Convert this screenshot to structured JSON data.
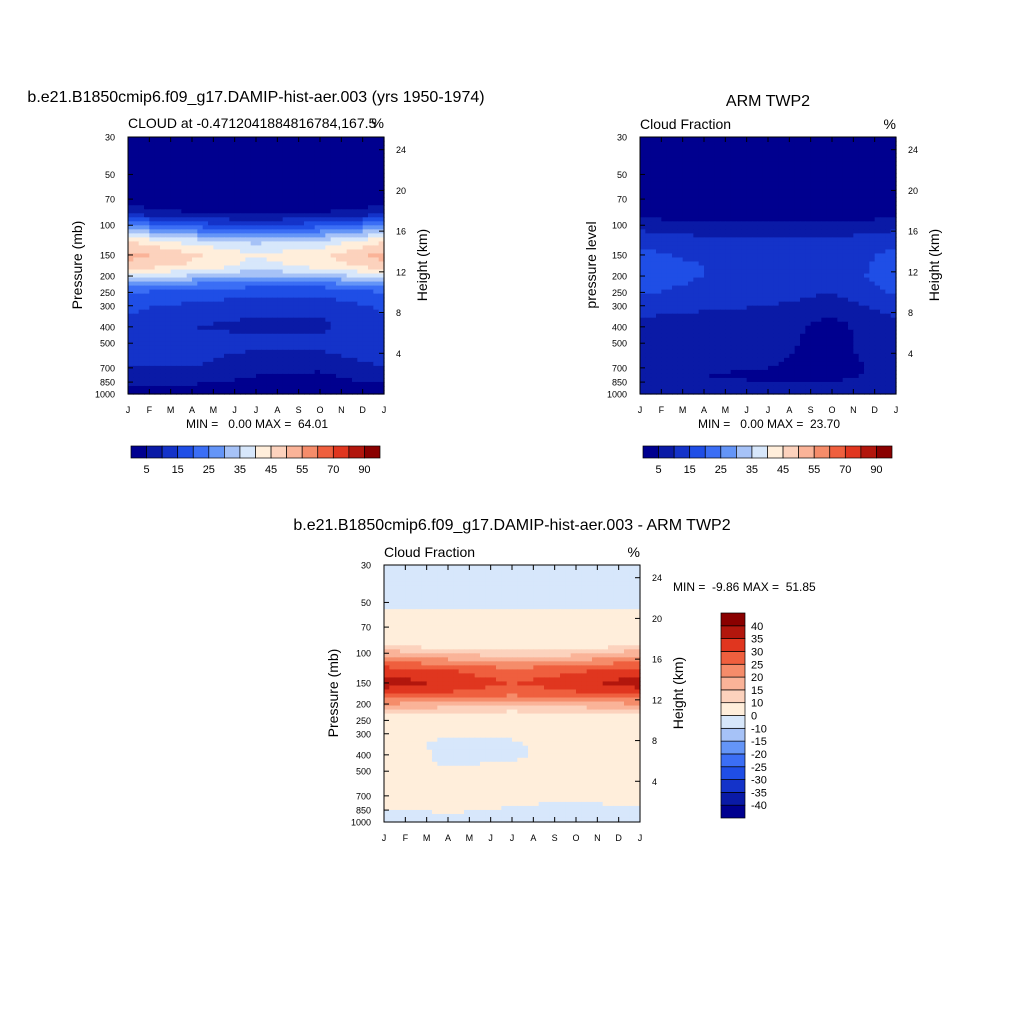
{
  "figure": {
    "background": "#ffffff"
  },
  "chart_data": [
    {
      "id": "model",
      "type": "heatmap",
      "title": "b.e21.B1850cmip6.f09_g17.DAMIP-hist-aer.003 (yrs 1950-1974)",
      "subtitle_left": "CLOUD at -0.4712041884816784,167.5",
      "subtitle_right": "%",
      "ylabel": "Pressure (mb)",
      "ylabel_right": "Height (km)",
      "x_ticks": [
        "J",
        "F",
        "M",
        "A",
        "M",
        "J",
        "J",
        "A",
        "S",
        "O",
        "N",
        "D",
        "J"
      ],
      "y_ticks": [
        30,
        50,
        70,
        100,
        150,
        200,
        250,
        300,
        400,
        500,
        700,
        850,
        1000
      ],
      "y_range": [
        30,
        1000
      ],
      "height_ticks": [
        4,
        8,
        12,
        16,
        20,
        24
      ],
      "stats_text": "MIN =   0.00 MAX =  64.01",
      "levels": [
        5,
        10,
        15,
        20,
        25,
        30,
        35,
        40,
        45,
        50,
        55,
        60,
        70,
        80,
        90
      ],
      "colors": [
        "#00008f",
        "#0a1aa6",
        "#1433c9",
        "#1f4ee6",
        "#3b6ef5",
        "#6495f7",
        "#a6c2f7",
        "#d7e7fb",
        "#ffeedb",
        "#fcd2bd",
        "#fab398",
        "#f58c6a",
        "#ef5f3e",
        "#e0361f",
        "#b2160d",
        "#8a0000"
      ],
      "colorbar_labels": [
        "5",
        "15",
        "25",
        "35",
        "45",
        "55",
        "70",
        "90"
      ],
      "profiles": {
        "pressure": [
          30,
          50,
          70,
          85,
          100,
          125,
          150,
          175,
          200,
          225,
          250,
          275,
          300,
          350,
          400,
          450,
          500,
          600,
          700,
          775,
          850,
          925,
          1000
        ],
        "months": [
          "Jan",
          "Apr",
          "Jul",
          "Oct",
          "Jan"
        ],
        "values": [
          [
            2,
            2,
            2,
            8,
            25,
            45,
            52,
            48,
            38,
            28,
            20,
            18,
            16,
            15,
            14,
            14,
            13,
            12,
            10,
            8,
            6,
            3,
            2
          ],
          [
            2,
            2,
            2,
            5,
            18,
            38,
            46,
            44,
            34,
            24,
            18,
            16,
            14,
            11,
            10,
            11,
            12,
            11,
            10,
            8,
            6,
            3,
            2
          ],
          [
            2,
            2,
            2,
            4,
            14,
            34,
            40,
            38,
            30,
            22,
            16,
            14,
            12,
            10,
            9,
            10,
            11,
            9,
            7,
            5,
            4,
            2,
            1
          ],
          [
            2,
            2,
            2,
            5,
            18,
            36,
            44,
            42,
            32,
            22,
            16,
            14,
            12,
            10,
            9,
            10,
            11,
            9,
            6,
            4,
            3,
            2,
            1
          ],
          [
            2,
            2,
            2,
            8,
            25,
            45,
            52,
            48,
            38,
            28,
            20,
            18,
            16,
            15,
            14,
            14,
            13,
            12,
            10,
            8,
            6,
            3,
            2
          ]
        ]
      }
    },
    {
      "id": "obs",
      "type": "heatmap",
      "title": "ARM TWP2",
      "subtitle_left": "Cloud Fraction",
      "subtitle_right": "%",
      "ylabel": "pressure level",
      "ylabel_right": "Height (km)",
      "x_ticks": [
        "J",
        "F",
        "M",
        "A",
        "M",
        "J",
        "J",
        "A",
        "S",
        "O",
        "N",
        "D",
        "J"
      ],
      "y_ticks": [
        30,
        50,
        70,
        100,
        150,
        200,
        250,
        300,
        400,
        500,
        700,
        850,
        1000
      ],
      "y_range": [
        30,
        1000
      ],
      "height_ticks": [
        4,
        8,
        12,
        16,
        20,
        24
      ],
      "stats_text": "MIN =   0.00 MAX =  23.70",
      "levels": [
        5,
        10,
        15,
        20,
        25,
        30,
        35,
        40,
        45,
        50,
        55,
        60,
        70,
        80,
        90
      ],
      "colors": [
        "#00008f",
        "#0a1aa6",
        "#1433c9",
        "#1f4ee6",
        "#3b6ef5",
        "#6495f7",
        "#a6c2f7",
        "#d7e7fb",
        "#ffeedb",
        "#fcd2bd",
        "#fab398",
        "#f58c6a",
        "#ef5f3e",
        "#e0361f",
        "#b2160d",
        "#8a0000"
      ],
      "colorbar_labels": [
        "5",
        "15",
        "25",
        "35",
        "45",
        "55",
        "70",
        "90"
      ],
      "profiles": {
        "pressure": [
          30,
          50,
          70,
          85,
          100,
          125,
          150,
          175,
          200,
          225,
          250,
          275,
          300,
          350,
          400,
          450,
          500,
          600,
          700,
          775,
          850,
          925,
          1000
        ],
        "months": [
          "Jan",
          "Apr",
          "Jul",
          "Oct",
          "Jan"
        ],
        "values": [
          [
            2,
            2,
            2,
            3,
            8,
            14,
            16,
            17,
            18,
            17,
            16,
            14,
            12,
            10,
            10,
            9,
            9,
            8,
            7,
            6,
            7,
            8,
            6
          ],
          [
            2,
            2,
            2,
            2,
            6,
            12,
            14,
            15,
            15,
            14,
            13,
            12,
            11,
            9,
            9,
            8,
            8,
            7,
            6,
            5,
            6,
            7,
            5
          ],
          [
            2,
            2,
            2,
            2,
            6,
            11,
            13,
            14,
            14,
            13,
            12,
            11,
            10,
            8,
            8,
            7,
            7,
            6,
            5,
            4,
            5,
            6,
            5
          ],
          [
            2,
            2,
            2,
            2,
            6,
            11,
            13,
            12,
            12,
            11,
            10,
            9,
            8,
            5,
            3,
            3,
            3,
            3,
            3,
            4,
            5,
            6,
            5
          ],
          [
            2,
            2,
            2,
            3,
            8,
            14,
            16,
            17,
            18,
            17,
            16,
            14,
            12,
            10,
            10,
            9,
            9,
            8,
            7,
            6,
            7,
            8,
            6
          ]
        ]
      }
    },
    {
      "id": "diff",
      "type": "heatmap",
      "title": "b.e21.B1850cmip6.f09_g17.DAMIP-hist-aer.003 - ARM TWP2",
      "subtitle_left": "Cloud Fraction",
      "subtitle_right": "%",
      "ylabel": "Pressure (mb)",
      "ylabel_right": "Height (km)",
      "x_ticks": [
        "J",
        "F",
        "M",
        "A",
        "M",
        "J",
        "J",
        "A",
        "S",
        "O",
        "N",
        "D",
        "J"
      ],
      "y_ticks": [
        30,
        50,
        70,
        100,
        150,
        200,
        250,
        300,
        400,
        500,
        700,
        850,
        1000
      ],
      "y_range": [
        30,
        1000
      ],
      "height_ticks": [
        4,
        8,
        12,
        16,
        20,
        24
      ],
      "stats_text": "MIN =  -9.86 MAX =  51.85",
      "levels": [
        -40,
        -35,
        -30,
        -25,
        -20,
        -15,
        -10,
        0,
        10,
        15,
        20,
        25,
        30,
        35,
        40
      ],
      "colors": [
        "#00008f",
        "#0a1aa6",
        "#1433c9",
        "#1f4ee6",
        "#3b6ef5",
        "#6495f7",
        "#a6c2f7",
        "#d7e7fb",
        "#ffeedb",
        "#fcd2bd",
        "#fab398",
        "#f58c6a",
        "#ef5f3e",
        "#e0361f",
        "#b2160d",
        "#8a0000"
      ],
      "colorbar_labels": [
        "-40",
        "-35",
        "-30",
        "-25",
        "-20",
        "-15",
        "-10",
        "0",
        "10",
        "15",
        "20",
        "25",
        "30",
        "35",
        "40"
      ],
      "profiles": {
        "pressure": [
          30,
          50,
          70,
          85,
          100,
          125,
          150,
          175,
          200,
          225,
          250,
          275,
          300,
          350,
          400,
          450,
          500,
          600,
          700,
          775,
          850,
          925,
          1000
        ],
        "months": [
          "Jan",
          "Apr",
          "Jul",
          "Oct",
          "Jan"
        ],
        "values": [
          [
            -2,
            -1,
            2,
            5,
            18,
            32,
            38,
            31,
            20,
            12,
            5,
            3,
            3,
            4,
            3,
            4,
            3,
            3,
            3,
            2,
            -1,
            -2,
            -1
          ],
          [
            -2,
            -1,
            2,
            4,
            14,
            30,
            34,
            29,
            18,
            10,
            5,
            4,
            1,
            -2,
            -1,
            -1,
            1,
            3,
            3,
            3,
            1,
            -1,
            -1
          ],
          [
            -2,
            -1,
            2,
            4,
            12,
            26,
            30,
            26,
            16,
            9,
            4,
            3,
            1,
            -1,
            -2,
            1,
            3,
            3,
            3,
            1,
            -1,
            -2,
            -1
          ],
          [
            -2,
            -1,
            2,
            4,
            13,
            29,
            33,
            29,
            18,
            10,
            4,
            3,
            2,
            4,
            5,
            5,
            4,
            3,
            2,
            -1,
            -2,
            -2,
            -1
          ],
          [
            -2,
            -1,
            2,
            5,
            18,
            32,
            38,
            31,
            20,
            12,
            5,
            3,
            3,
            4,
            3,
            4,
            3,
            3,
            3,
            2,
            -1,
            -2,
            -1
          ]
        ]
      }
    }
  ]
}
